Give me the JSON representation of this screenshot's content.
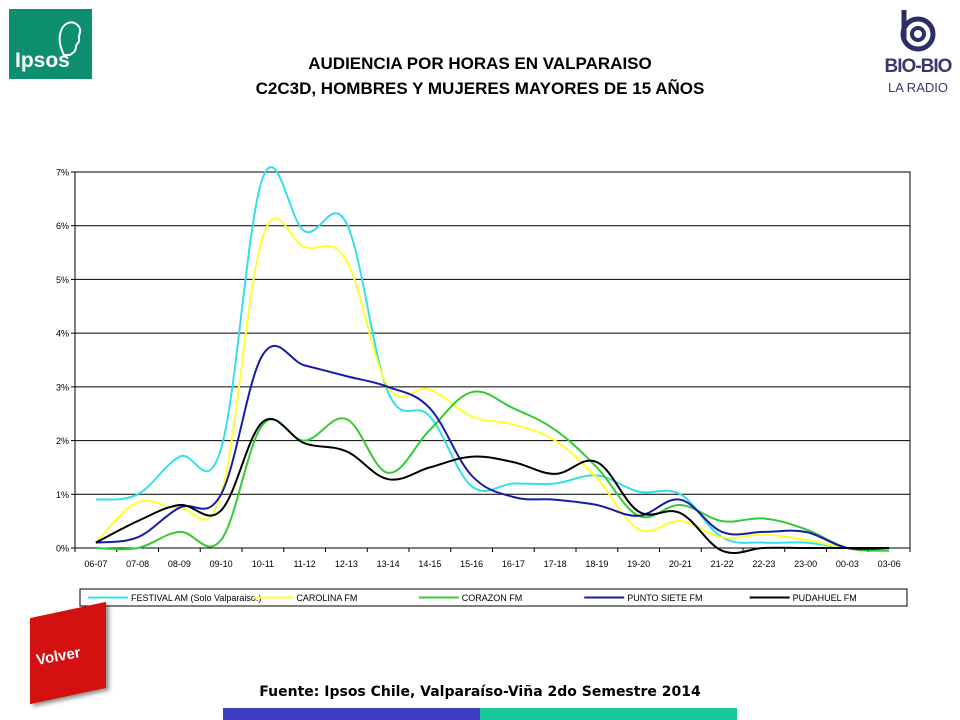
{
  "header": {
    "ipsos_logo_text": "Ipsos",
    "biobio_logo_name": "BIO-BIO",
    "biobio_logo_sub": "LA RADIO",
    "title_line1": "AUDIENCIA POR HORAS EN VALPARAISO",
    "title_line2": "C2C3D, HOMBRES Y MUJERES MAYORES DE 15 AÑOS"
  },
  "footer": {
    "volver_label": "Volver",
    "source": "Fuente: Ipsos Chile, Valparaíso-Viña 2do Semestre 2014",
    "bar_colors": [
      "#3b3fc0",
      "#19c99a"
    ]
  },
  "chart_data": {
    "type": "line",
    "title": "",
    "xlabel": "",
    "ylabel": "",
    "ylim": [
      0,
      7
    ],
    "y_ticks": [
      "0%",
      "1%",
      "2%",
      "3%",
      "4%",
      "5%",
      "6%",
      "7%"
    ],
    "grid": true,
    "legend_position": "bottom",
    "categories": [
      "06-07",
      "07-08",
      "08-09",
      "09-10",
      "10-11",
      "11-12",
      "12-13",
      "13-14",
      "14-15",
      "15-16",
      "16-17",
      "17-18",
      "18-19",
      "19-20",
      "20-21",
      "21-22",
      "22-23",
      "23-00",
      "00-03",
      "03-06"
    ],
    "series": [
      {
        "name": "FESTIVAL AM (Solo Valparaiso.)",
        "color": "#33e0e8",
        "values": [
          0.9,
          1.0,
          1.7,
          1.85,
          6.9,
          5.9,
          6.05,
          2.9,
          2.45,
          1.15,
          1.2,
          1.2,
          1.35,
          1.05,
          1.0,
          0.2,
          0.1,
          0.1,
          0.0,
          0.0
        ]
      },
      {
        "name": "CAROLINA FM",
        "color": "#ffff33",
        "values": [
          0.1,
          0.85,
          0.75,
          1.0,
          5.8,
          5.6,
          5.35,
          3.0,
          2.95,
          2.45,
          2.3,
          2.0,
          1.3,
          0.35,
          0.5,
          0.2,
          0.25,
          0.15,
          0.0,
          0.0
        ]
      },
      {
        "name": "CORAZON FM",
        "color": "#33cc33",
        "values": [
          0.0,
          0.0,
          0.3,
          0.15,
          2.3,
          2.0,
          2.4,
          1.4,
          2.2,
          2.9,
          2.6,
          2.2,
          1.5,
          0.6,
          0.8,
          0.5,
          0.55,
          0.35,
          0.0,
          -0.05
        ]
      },
      {
        "name": "PUNTO SIETE FM",
        "color": "#1a1aaa",
        "values": [
          0.1,
          0.2,
          0.75,
          1.0,
          3.6,
          3.4,
          3.2,
          3.0,
          2.6,
          1.35,
          0.95,
          0.9,
          0.8,
          0.6,
          0.9,
          0.3,
          0.3,
          0.3,
          0.0,
          0.0
        ]
      },
      {
        "name": "PUDAHUEL FM",
        "color": "#000000",
        "values": [
          0.1,
          0.5,
          0.8,
          0.7,
          2.35,
          1.95,
          1.8,
          1.28,
          1.5,
          1.7,
          1.6,
          1.38,
          1.6,
          0.68,
          0.65,
          -0.05,
          0.0,
          0.0,
          0.0,
          0.0
        ]
      }
    ]
  }
}
